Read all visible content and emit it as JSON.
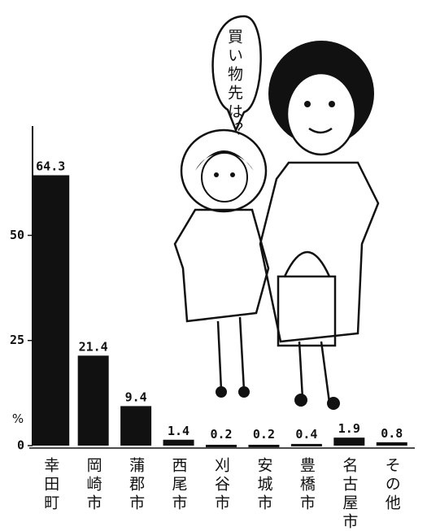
{
  "chart_data": {
    "type": "bar",
    "annotation": "買い物先は？",
    "unit": "%",
    "categories": [
      "幸田町",
      "岡崎市",
      "蒲郡市",
      "西尾市",
      "刈谷市",
      "安城市",
      "豊橋市",
      "名古屋市",
      "その他"
    ],
    "values": [
      64.3,
      21.4,
      9.4,
      1.4,
      0.2,
      0.2,
      0.4,
      1.9,
      0.8
    ],
    "color": "#111111",
    "ylim": [
      0,
      76
    ],
    "yticks": [
      0,
      25,
      50
    ],
    "grid": false
  }
}
